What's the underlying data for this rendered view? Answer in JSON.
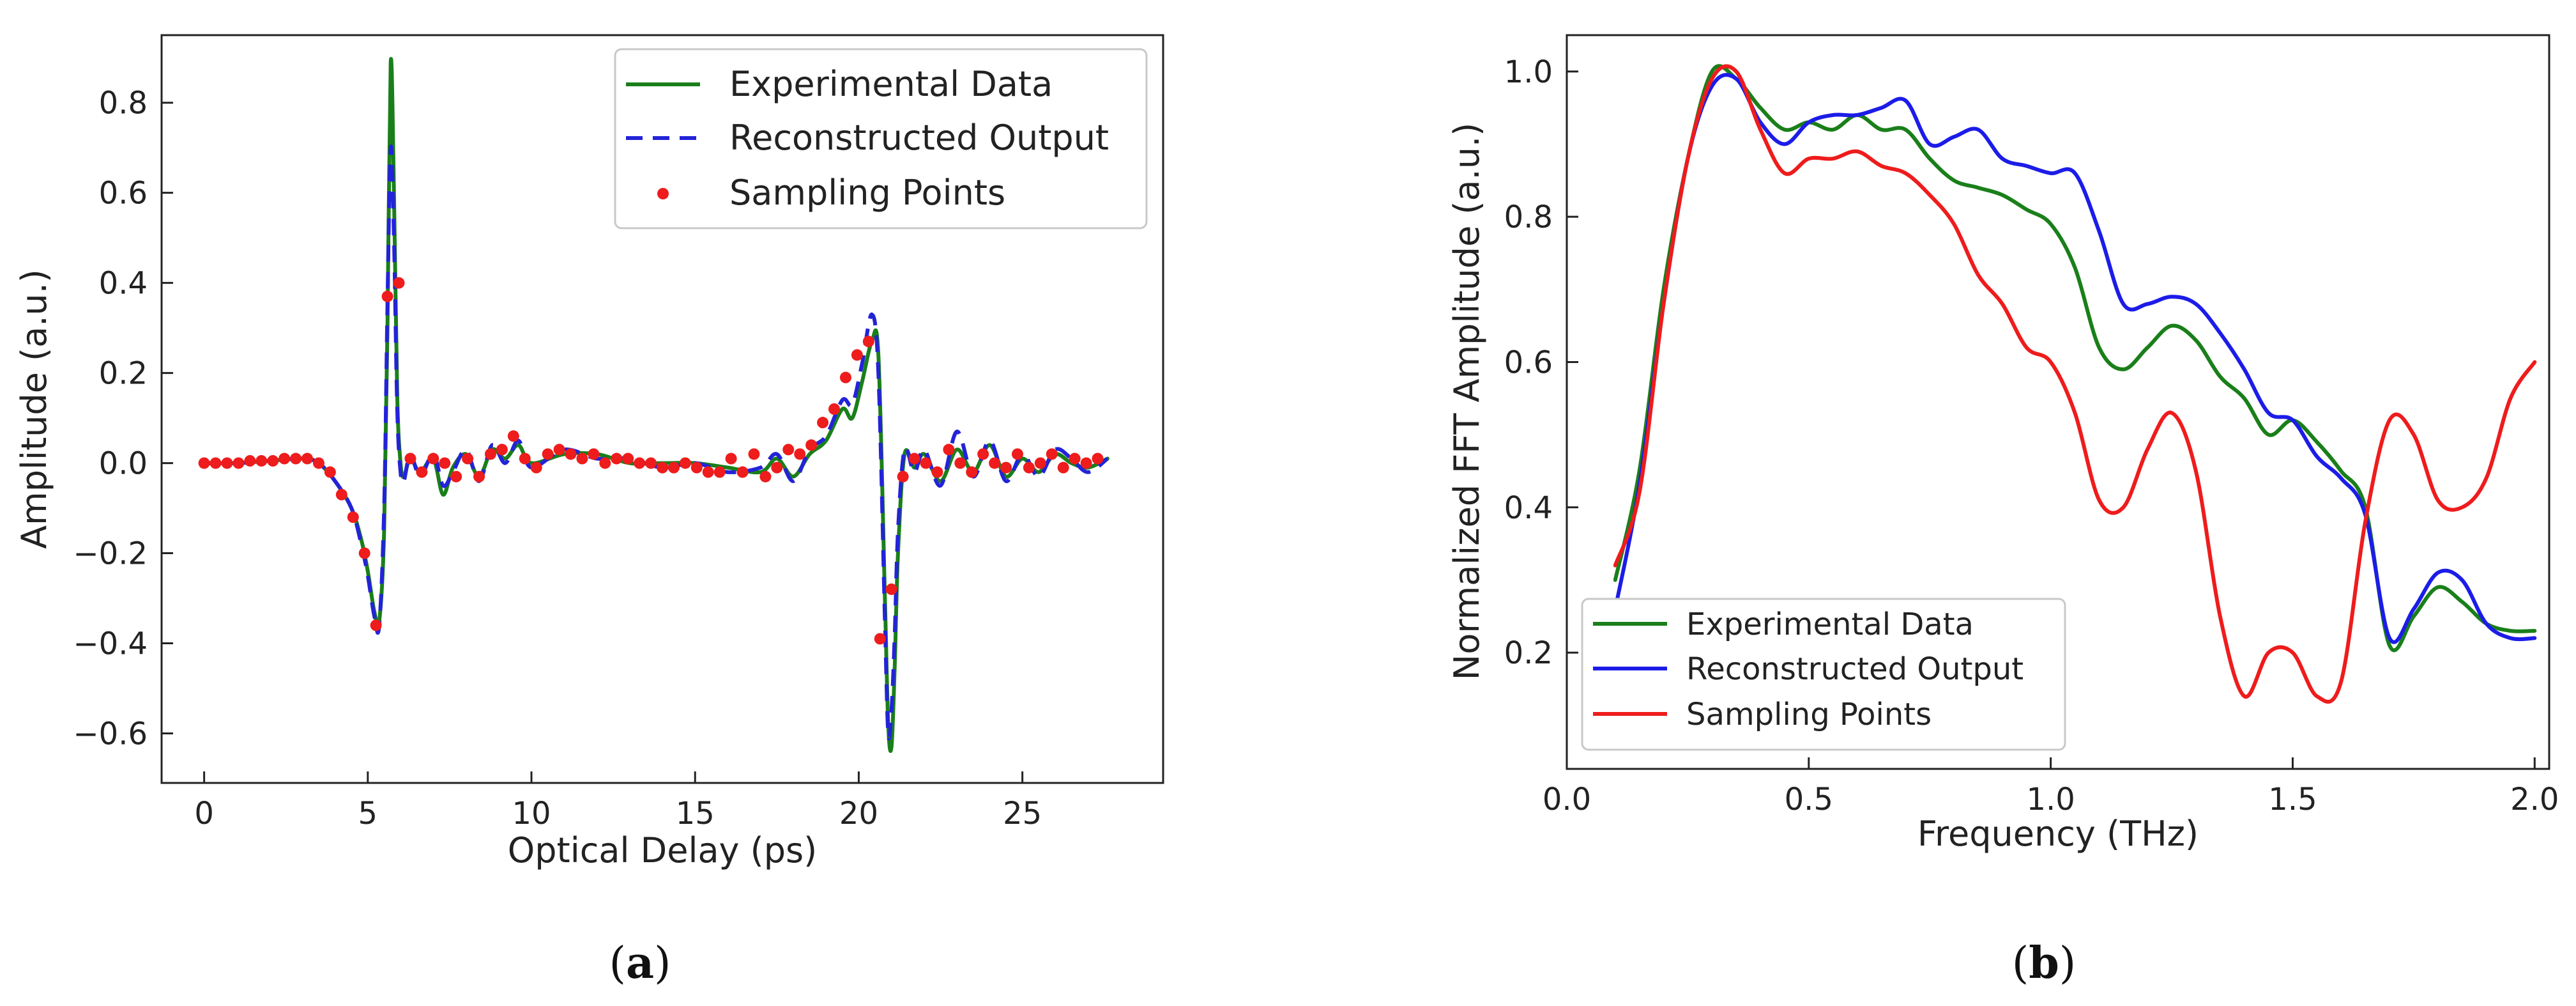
{
  "chart_data": [
    {
      "type": "line",
      "panel": "a",
      "caption_letter": "a",
      "title": "",
      "xlabel": "Optical Delay (ps)",
      "ylabel": "Amplitude (a.u.)",
      "xlim": [
        -1.3,
        29.3
      ],
      "ylim": [
        -0.71,
        0.95
      ],
      "xticks": [
        0,
        5,
        10,
        15,
        20,
        25
      ],
      "xtick_labels": [
        "0",
        "5",
        "10",
        "15",
        "20",
        "25"
      ],
      "yticks": [
        -0.6,
        -0.4,
        -0.2,
        0.0,
        0.2,
        0.4,
        0.6,
        0.8
      ],
      "ytick_labels": [
        "−0.6",
        "−0.4",
        "−0.2",
        "0.0",
        "0.2",
        "0.4",
        "0.6",
        "0.8"
      ],
      "legend_position": "top-right",
      "series": [
        {
          "name": "Experimental Data",
          "color": "#1a7f1a",
          "style": "solid",
          "x": [
            0,
            1,
            2,
            3,
            3.5,
            4,
            4.5,
            4.8,
            5.0,
            5.2,
            5.35,
            5.5,
            5.6,
            5.7,
            5.8,
            5.9,
            6.0,
            6.1,
            6.3,
            6.6,
            7.0,
            7.3,
            7.6,
            8.0,
            8.4,
            8.8,
            9.2,
            9.6,
            10.0,
            11,
            12,
            13,
            14,
            15,
            16,
            17,
            17.5,
            18,
            18.5,
            19,
            19.5,
            19.8,
            20.1,
            20.4,
            20.6,
            20.8,
            20.9,
            21.0,
            21.1,
            21.2,
            21.4,
            21.7,
            22.0,
            22.5,
            23,
            23.5,
            24,
            24.5,
            25,
            25.5,
            26,
            26.5,
            27,
            27.6
          ],
          "y": [
            0.0,
            0.0,
            0.005,
            0.01,
            0.0,
            -0.04,
            -0.1,
            -0.17,
            -0.24,
            -0.33,
            -0.35,
            -0.15,
            0.3,
            0.89,
            0.6,
            0.15,
            0.0,
            -0.03,
            0.01,
            -0.02,
            0.01,
            -0.07,
            -0.01,
            0.02,
            -0.03,
            0.03,
            0.01,
            0.04,
            0.0,
            0.02,
            0.02,
            0.0,
            0.0,
            0.0,
            -0.01,
            -0.02,
            0.01,
            -0.03,
            0.02,
            0.05,
            0.12,
            0.1,
            0.18,
            0.27,
            0.24,
            -0.3,
            -0.58,
            -0.63,
            -0.45,
            -0.2,
            0.02,
            -0.01,
            0.02,
            -0.04,
            0.03,
            -0.02,
            0.04,
            -0.03,
            0.01,
            -0.02,
            0.02,
            0.0,
            -0.01,
            0.01
          ]
        },
        {
          "name": "Reconstructed Output",
          "color": "#2323d8",
          "style": "dashed",
          "x": [
            0,
            1,
            2,
            3,
            3.5,
            4,
            4.5,
            4.8,
            5.0,
            5.2,
            5.35,
            5.5,
            5.6,
            5.7,
            5.8,
            5.9,
            6.0,
            6.1,
            6.3,
            6.6,
            7.0,
            7.3,
            7.6,
            8.0,
            8.4,
            8.8,
            9.2,
            9.6,
            10.0,
            11,
            12,
            13,
            14,
            15,
            16,
            17,
            17.5,
            18,
            18.5,
            19,
            19.5,
            19.8,
            20.1,
            20.4,
            20.6,
            20.8,
            20.9,
            21.0,
            21.1,
            21.2,
            21.4,
            21.7,
            22.0,
            22.5,
            23,
            23.5,
            24,
            24.5,
            25,
            25.5,
            26,
            26.5,
            27,
            27.6
          ],
          "y": [
            0.0,
            0.0,
            0.005,
            0.01,
            0.0,
            -0.04,
            -0.1,
            -0.18,
            -0.25,
            -0.34,
            -0.36,
            -0.1,
            0.35,
            0.7,
            0.5,
            0.12,
            -0.02,
            -0.04,
            0.02,
            -0.03,
            0.02,
            -0.05,
            -0.02,
            0.03,
            -0.04,
            0.04,
            0.0,
            0.05,
            -0.01,
            0.03,
            0.01,
            0.01,
            -0.01,
            0.0,
            -0.02,
            -0.01,
            0.02,
            -0.04,
            0.03,
            0.06,
            0.14,
            0.13,
            0.22,
            0.33,
            0.2,
            -0.35,
            -0.6,
            -0.55,
            -0.38,
            -0.15,
            0.03,
            -0.02,
            0.03,
            -0.05,
            0.07,
            -0.03,
            0.05,
            -0.04,
            0.02,
            -0.03,
            0.03,
            0.01,
            -0.02,
            0.01
          ]
        }
      ],
      "points": {
        "name": "Sampling Points",
        "color": "#ee1c1c",
        "x": [
          0,
          0.35,
          0.7,
          1.05,
          1.4,
          1.75,
          2.1,
          2.45,
          2.8,
          3.15,
          3.5,
          3.85,
          4.2,
          4.55,
          4.9,
          5.25,
          5.6,
          5.95,
          6.3,
          6.65,
          7.0,
          7.35,
          7.7,
          8.05,
          8.4,
          8.75,
          9.1,
          9.45,
          9.8,
          10.15,
          10.5,
          10.85,
          11.2,
          11.55,
          11.9,
          12.25,
          12.6,
          12.95,
          13.3,
          13.65,
          14.0,
          14.35,
          14.7,
          15.05,
          15.4,
          15.75,
          16.1,
          16.45,
          16.8,
          17.15,
          17.5,
          17.85,
          18.2,
          18.55,
          18.9,
          19.25,
          19.6,
          19.95,
          20.3,
          20.65,
          21.0,
          21.35,
          21.7,
          22.05,
          22.4,
          22.75,
          23.1,
          23.45,
          23.8,
          24.15,
          24.5,
          24.85,
          25.2,
          25.55,
          25.9,
          26.25,
          26.6,
          26.95,
          27.3
        ],
        "y": [
          0.0,
          0.0,
          0.0,
          0.0,
          0.005,
          0.005,
          0.005,
          0.01,
          0.01,
          0.01,
          0.0,
          -0.02,
          -0.07,
          -0.12,
          -0.2,
          -0.36,
          0.37,
          0.4,
          0.01,
          -0.02,
          0.01,
          0.0,
          -0.03,
          0.01,
          -0.03,
          0.02,
          0.03,
          0.06,
          0.01,
          -0.01,
          0.02,
          0.03,
          0.02,
          0.01,
          0.02,
          0.0,
          0.01,
          0.01,
          0.0,
          0.0,
          -0.01,
          -0.01,
          0.0,
          -0.01,
          -0.02,
          -0.02,
          0.01,
          -0.02,
          0.02,
          -0.03,
          -0.01,
          0.03,
          0.02,
          0.04,
          0.09,
          0.12,
          0.19,
          0.24,
          0.27,
          -0.39,
          -0.28,
          -0.03,
          0.01,
          0.0,
          -0.02,
          0.03,
          0.0,
          -0.02,
          0.02,
          0.0,
          -0.01,
          0.02,
          -0.01,
          0.0,
          0.02,
          -0.01,
          0.01,
          0.0,
          0.01
        ]
      }
    },
    {
      "type": "line",
      "panel": "b",
      "caption_letter": "b",
      "title": "",
      "xlabel": "Frequency (THz)",
      "ylabel": "Normalized FFT Amplitude (a.u.)",
      "xlim": [
        0.0,
        2.03
      ],
      "ylim": [
        0.04,
        1.05
      ],
      "xticks": [
        0.0,
        0.5,
        1.0,
        1.5,
        2.0
      ],
      "xtick_labels": [
        "0.0",
        "0.5",
        "1.0",
        "1.5",
        "2.0"
      ],
      "yticks": [
        0.2,
        0.4,
        0.6,
        0.8,
        1.0
      ],
      "ytick_labels": [
        "0.2",
        "0.4",
        "0.6",
        "0.8",
        "1.0"
      ],
      "legend_position": "bottom-left",
      "series": [
        {
          "name": "Experimental Data",
          "color": "#1a7f1a",
          "x": [
            0.1,
            0.15,
            0.2,
            0.25,
            0.3,
            0.35,
            0.4,
            0.45,
            0.5,
            0.55,
            0.6,
            0.65,
            0.7,
            0.75,
            0.8,
            0.85,
            0.9,
            0.95,
            1.0,
            1.05,
            1.1,
            1.15,
            1.2,
            1.25,
            1.3,
            1.35,
            1.4,
            1.45,
            1.5,
            1.55,
            1.6,
            1.65,
            1.7,
            1.75,
            1.8,
            1.85,
            1.9,
            1.95,
            2.0
          ],
          "y": [
            0.3,
            0.45,
            0.7,
            0.88,
            1.0,
            0.99,
            0.95,
            0.92,
            0.93,
            0.92,
            0.94,
            0.92,
            0.92,
            0.88,
            0.85,
            0.84,
            0.83,
            0.81,
            0.79,
            0.73,
            0.62,
            0.59,
            0.62,
            0.65,
            0.63,
            0.58,
            0.55,
            0.5,
            0.52,
            0.49,
            0.45,
            0.4,
            0.21,
            0.25,
            0.29,
            0.27,
            0.24,
            0.23,
            0.23
          ]
        },
        {
          "name": "Reconstructed Output",
          "color": "#1c1ce8",
          "x": [
            0.1,
            0.15,
            0.2,
            0.25,
            0.3,
            0.35,
            0.4,
            0.45,
            0.5,
            0.55,
            0.6,
            0.65,
            0.7,
            0.75,
            0.8,
            0.85,
            0.9,
            0.95,
            1.0,
            1.05,
            1.1,
            1.15,
            1.2,
            1.25,
            1.3,
            1.35,
            1.4,
            1.45,
            1.5,
            1.55,
            1.6,
            1.65,
            1.7,
            1.75,
            1.8,
            1.85,
            1.9,
            1.95,
            2.0
          ],
          "y": [
            0.26,
            0.43,
            0.68,
            0.88,
            0.98,
            0.99,
            0.93,
            0.9,
            0.93,
            0.94,
            0.94,
            0.95,
            0.96,
            0.9,
            0.91,
            0.92,
            0.88,
            0.87,
            0.86,
            0.86,
            0.78,
            0.68,
            0.68,
            0.69,
            0.68,
            0.64,
            0.59,
            0.53,
            0.52,
            0.47,
            0.44,
            0.39,
            0.22,
            0.26,
            0.31,
            0.3,
            0.24,
            0.22,
            0.22
          ]
        },
        {
          "name": "Sampling Points",
          "color": "#ee1c1c",
          "x": [
            0.1,
            0.15,
            0.2,
            0.25,
            0.3,
            0.35,
            0.4,
            0.45,
            0.5,
            0.55,
            0.6,
            0.65,
            0.7,
            0.75,
            0.8,
            0.85,
            0.9,
            0.95,
            1.0,
            1.05,
            1.1,
            1.15,
            1.2,
            1.25,
            1.3,
            1.35,
            1.4,
            1.45,
            1.5,
            1.55,
            1.6,
            1.65,
            1.7,
            1.75,
            1.8,
            1.85,
            1.9,
            1.95,
            2.0
          ],
          "y": [
            0.32,
            0.42,
            0.68,
            0.88,
            0.99,
            1.0,
            0.92,
            0.86,
            0.88,
            0.88,
            0.89,
            0.87,
            0.86,
            0.83,
            0.79,
            0.72,
            0.68,
            0.62,
            0.6,
            0.53,
            0.41,
            0.4,
            0.48,
            0.53,
            0.45,
            0.25,
            0.14,
            0.2,
            0.2,
            0.14,
            0.16,
            0.38,
            0.52,
            0.5,
            0.41,
            0.4,
            0.44,
            0.55,
            0.6
          ]
        }
      ]
    }
  ]
}
